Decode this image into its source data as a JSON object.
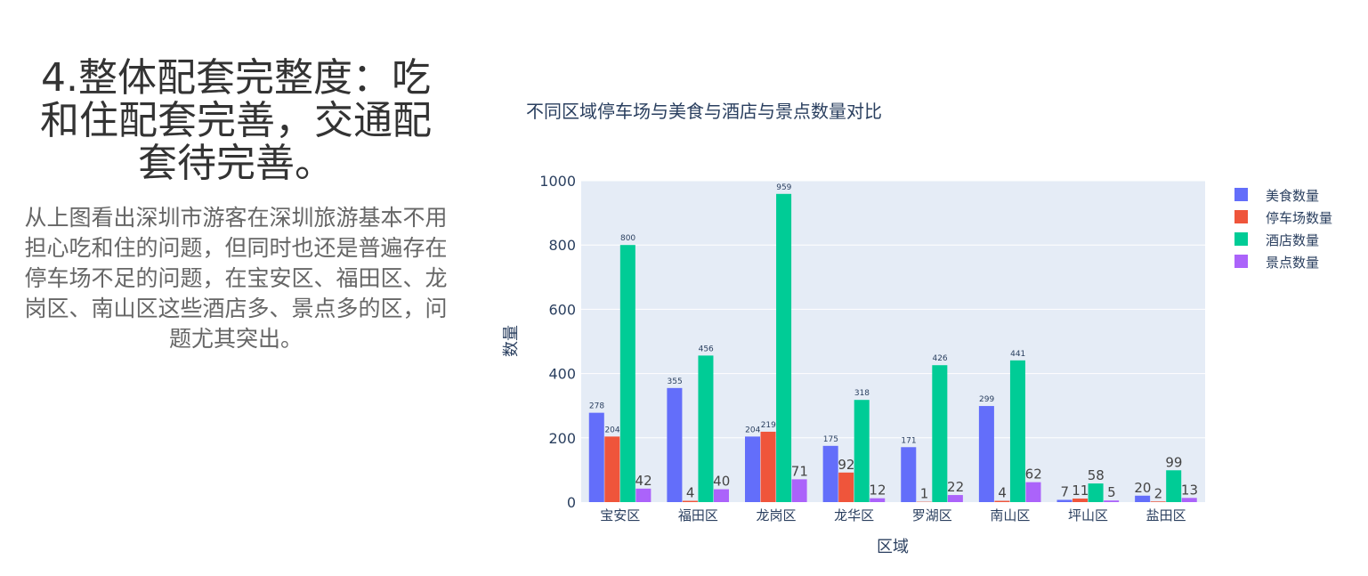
{
  "section": {
    "heading": "4.整体配套完整度：吃和住配套完善，交通配套待完善。",
    "paragraph": "从上图看出深圳市游客在深圳旅游基本不用担心吃和住的问题，但同时也还是普遍存在停车场不足的问题，在宝安区、福田区、龙岗区、南山区这些酒店多、景点多的区，问题尤其突出。"
  },
  "chart_data": {
    "type": "bar",
    "title": "不同区域停车场与美食与酒店与景点数量对比",
    "xlabel": "区域",
    "ylabel": "数量",
    "ylim": [
      0,
      1000
    ],
    "yticks": [
      0,
      200,
      400,
      600,
      800,
      1000
    ],
    "grid": true,
    "legend_position": "top-right",
    "categories": [
      "宝安区",
      "福田区",
      "龙岗区",
      "龙华区",
      "罗湖区",
      "南山区",
      "坪山区",
      "盐田区"
    ],
    "series": [
      {
        "name": "美食数量",
        "color": "#636efa",
        "values": [
          278,
          355,
          204,
          175,
          171,
          299,
          7,
          20
        ]
      },
      {
        "name": "停车场数量",
        "color": "#ef553b",
        "values": [
          204,
          4,
          219,
          92,
          1,
          4,
          11,
          2
        ]
      },
      {
        "name": "酒店数量",
        "color": "#00cc96",
        "values": [
          800,
          456,
          959,
          318,
          426,
          441,
          58,
          99
        ]
      },
      {
        "name": "景点数量",
        "color": "#ab63fa",
        "values": [
          42,
          40,
          71,
          12,
          22,
          62,
          5,
          13
        ]
      }
    ]
  }
}
